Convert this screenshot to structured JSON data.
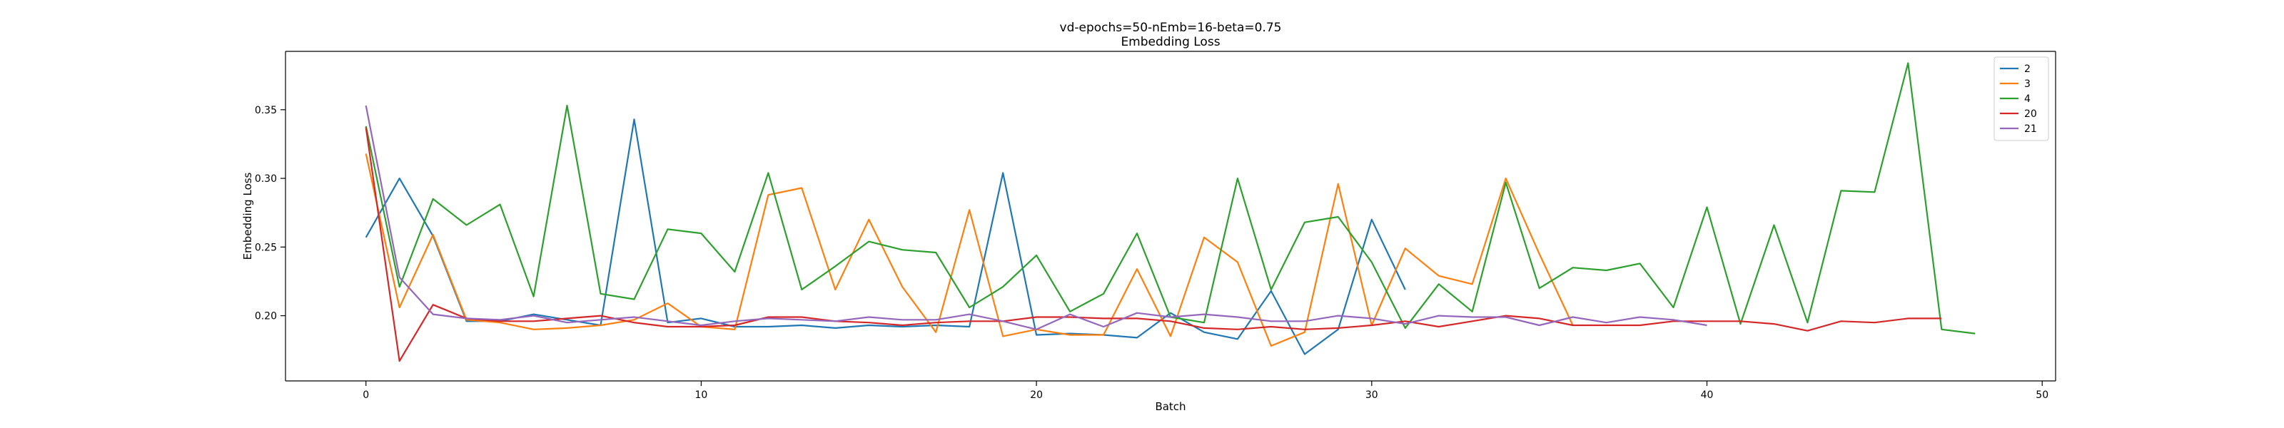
{
  "chart_data": {
    "type": "line",
    "title": "vd-epochs=50-nEmb=16-beta=0.75",
    "subtitle": "Embedding Loss",
    "xlabel": "Batch",
    "ylabel": "Embedding Loss",
    "xlim": [
      -2.4,
      50.4
    ],
    "ylim": [
      0.1525,
      0.3925
    ],
    "xticks": [
      0,
      10,
      20,
      30,
      40,
      50
    ],
    "yticks": [
      0.2,
      0.25,
      0.3,
      0.35
    ],
    "xtick_labels": [
      "0",
      "10",
      "20",
      "30",
      "40",
      "50"
    ],
    "ytick_labels": [
      "0.20",
      "0.25",
      "0.30",
      "0.35"
    ],
    "grid": false,
    "legend_position": "top-right",
    "series": [
      {
        "name": "2",
        "color": "#1f77b4",
        "x": [
          0,
          1,
          2,
          3,
          4,
          5,
          6,
          7,
          8,
          9,
          10,
          11,
          12,
          13,
          14,
          15,
          16,
          17,
          18,
          19,
          20,
          21,
          22,
          23,
          24,
          25,
          26,
          27,
          28,
          29,
          30,
          31
        ],
        "values": [
          0.257,
          0.3,
          0.258,
          0.196,
          0.196,
          0.201,
          0.197,
          0.193,
          0.343,
          0.195,
          0.198,
          0.192,
          0.192,
          0.193,
          0.191,
          0.193,
          0.192,
          0.193,
          0.192,
          0.304,
          0.186,
          0.187,
          0.186,
          0.184,
          0.202,
          0.188,
          0.183,
          0.218,
          0.172,
          0.19,
          0.27,
          0.219
        ]
      },
      {
        "name": "3",
        "color": "#ff7f0e",
        "x": [
          0,
          1,
          2,
          3,
          4,
          5,
          6,
          7,
          8,
          9,
          10,
          11,
          12,
          13,
          14,
          15,
          16,
          17,
          18,
          19,
          20,
          21,
          22,
          23,
          24,
          25,
          26,
          27,
          28,
          29,
          30,
          31,
          32,
          33,
          34,
          35,
          36
        ],
        "values": [
          0.318,
          0.206,
          0.259,
          0.197,
          0.195,
          0.19,
          0.191,
          0.193,
          0.197,
          0.209,
          0.192,
          0.19,
          0.288,
          0.293,
          0.219,
          0.27,
          0.221,
          0.188,
          0.277,
          0.185,
          0.19,
          0.186,
          0.186,
          0.234,
          0.185,
          0.257,
          0.239,
          0.178,
          0.188,
          0.296,
          0.193,
          0.249,
          0.229,
          0.223,
          0.3,
          0.245,
          0.193
        ]
      },
      {
        "name": "4",
        "color": "#2ca02c",
        "x": [
          0,
          1,
          2,
          3,
          4,
          5,
          6,
          7,
          8,
          9,
          10,
          11,
          12,
          13,
          14,
          15,
          16,
          17,
          18,
          19,
          20,
          21,
          22,
          23,
          24,
          25,
          26,
          27,
          28,
          29,
          30,
          31,
          32,
          33,
          34,
          35,
          36,
          37,
          38,
          39,
          40,
          41,
          42,
          43,
          44,
          45,
          46,
          47,
          48
        ],
        "values": [
          0.338,
          0.221,
          0.285,
          0.266,
          0.281,
          0.214,
          0.353,
          0.216,
          0.212,
          0.263,
          0.26,
          0.232,
          0.304,
          0.219,
          0.236,
          0.254,
          0.248,
          0.246,
          0.206,
          0.221,
          0.244,
          0.203,
          0.216,
          0.26,
          0.199,
          0.195,
          0.3,
          0.219,
          0.268,
          0.272,
          0.239,
          0.191,
          0.223,
          0.203,
          0.297,
          0.22,
          0.235,
          0.233,
          0.238,
          0.206,
          0.279,
          0.194,
          0.266,
          0.195,
          0.291,
          0.29,
          0.384,
          0.19,
          0.187
        ]
      },
      {
        "name": "20",
        "color": "#d62728",
        "x": [
          0,
          1,
          2,
          3,
          4,
          5,
          6,
          7,
          8,
          9,
          10,
          11,
          12,
          13,
          14,
          15,
          16,
          17,
          18,
          19,
          20,
          21,
          22,
          23,
          24,
          25,
          26,
          27,
          28,
          29,
          30,
          31,
          32,
          33,
          34,
          35,
          36,
          37,
          38,
          39,
          40,
          41,
          42,
          43,
          44,
          45,
          46,
          47
        ],
        "values": [
          0.337,
          0.167,
          0.208,
          0.198,
          0.196,
          0.196,
          0.198,
          0.2,
          0.195,
          0.192,
          0.192,
          0.193,
          0.199,
          0.199,
          0.196,
          0.195,
          0.193,
          0.195,
          0.196,
          0.196,
          0.199,
          0.199,
          0.198,
          0.198,
          0.196,
          0.191,
          0.19,
          0.192,
          0.19,
          0.191,
          0.193,
          0.196,
          0.192,
          0.196,
          0.2,
          0.198,
          0.193,
          0.193,
          0.193,
          0.196,
          0.196,
          0.196,
          0.194,
          0.189,
          0.196,
          0.195,
          0.198,
          0.198
        ]
      },
      {
        "name": "21",
        "color": "#9467bd",
        "x": [
          0,
          1,
          2,
          3,
          4,
          5,
          6,
          7,
          8,
          9,
          10,
          11,
          12,
          13,
          14,
          15,
          16,
          17,
          18,
          19,
          20,
          21,
          22,
          23,
          24,
          25,
          26,
          27,
          28,
          29,
          30,
          31,
          32,
          33,
          34,
          35,
          36,
          37,
          38,
          39,
          40
        ],
        "values": [
          0.353,
          0.228,
          0.201,
          0.198,
          0.197,
          0.2,
          0.195,
          0.197,
          0.199,
          0.196,
          0.193,
          0.196,
          0.198,
          0.197,
          0.196,
          0.199,
          0.197,
          0.197,
          0.201,
          0.196,
          0.19,
          0.201,
          0.192,
          0.202,
          0.199,
          0.201,
          0.199,
          0.196,
          0.196,
          0.2,
          0.198,
          0.194,
          0.2,
          0.199,
          0.199,
          0.193,
          0.199,
          0.195,
          0.199,
          0.197,
          0.193
        ]
      }
    ]
  }
}
